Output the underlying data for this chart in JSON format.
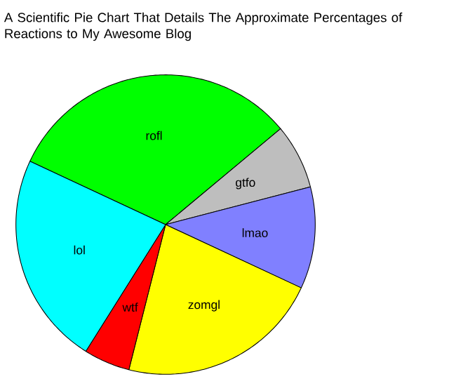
{
  "chart_data": {
    "type": "pie",
    "title": "A Scientific Pie Chart That Details The Approximate Percentages of Reactions to My Awesome Blog",
    "categories": [
      "rofl",
      "gtfo",
      "lmao",
      "zomgl",
      "wtf",
      "lol"
    ],
    "values": [
      32,
      7,
      11,
      22,
      5,
      23
    ],
    "colors": [
      "#00ff00",
      "#bebebe",
      "#8080ff",
      "#ffff00",
      "#ff0000",
      "#00ffff"
    ]
  }
}
